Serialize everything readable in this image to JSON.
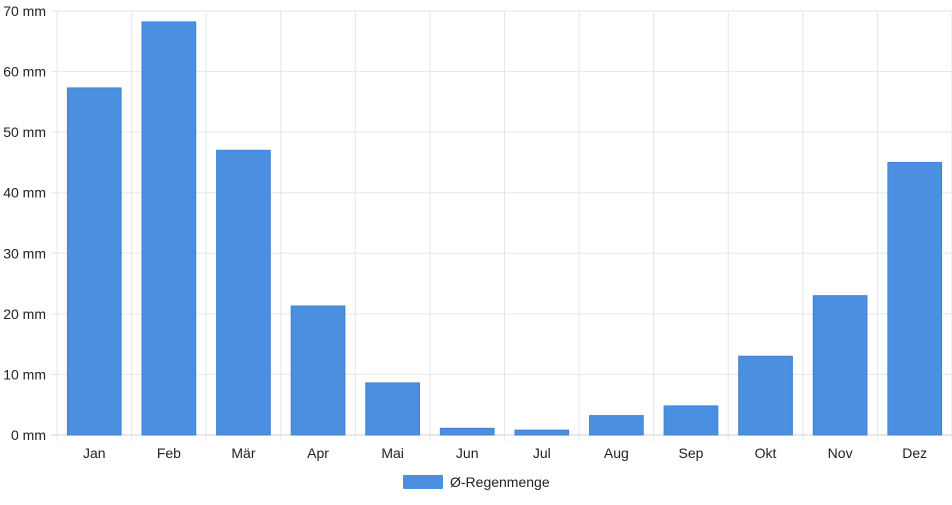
{
  "chart_data": {
    "type": "bar",
    "categories": [
      "Jan",
      "Feb",
      "Mär",
      "Apr",
      "Mai",
      "Jun",
      "Jul",
      "Aug",
      "Sep",
      "Okt",
      "Nov",
      "Dez"
    ],
    "series": [
      {
        "name": "Ø-Regenmenge",
        "values": [
          57.3,
          68.2,
          47.0,
          21.3,
          8.6,
          1.1,
          0.8,
          3.2,
          4.8,
          13.0,
          23.0,
          45.0
        ],
        "color": "#4a8fe0"
      }
    ],
    "y_ticks": [
      "0 mm",
      "10 mm",
      "20 mm",
      "30 mm",
      "40 mm",
      "50 mm",
      "60 mm",
      "70 mm"
    ],
    "ylim": [
      0,
      70
    ],
    "grid": true,
    "legend_position": "bottom-center",
    "title": "",
    "xlabel": "",
    "ylabel": ""
  }
}
